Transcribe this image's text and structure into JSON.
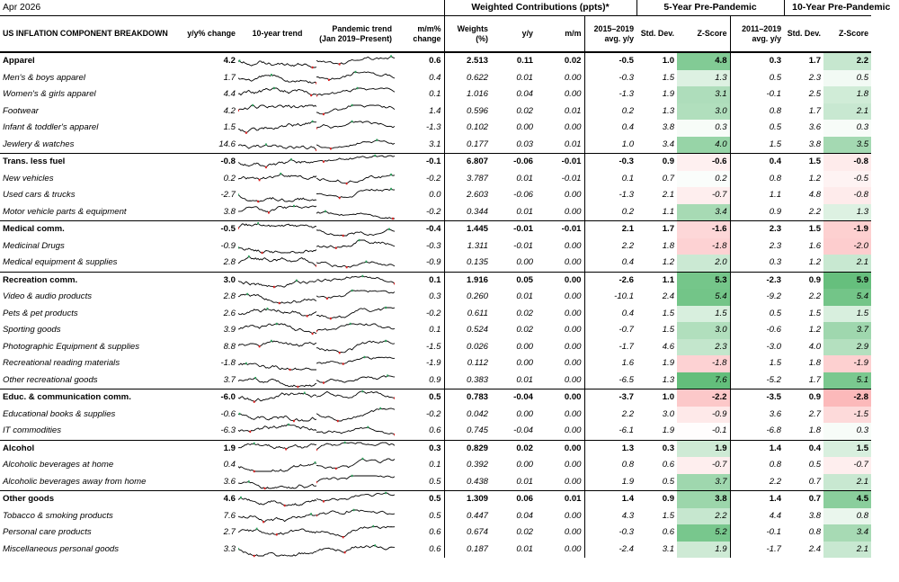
{
  "header": {
    "date": "Apr 2026",
    "weighted_title": "Weighted Contributions (ppts)*",
    "five_year_title": "5-Year Pre-Pandemic",
    "ten_year_title": "10-Year Pre-Pandemic"
  },
  "columns": {
    "breakdown": "US INFLATION COMPONENT BREAKDOWN",
    "yy_change": "y/y% change",
    "trend10": "10-year trend",
    "pandemic_trend": "Pandemic trend (Jan 2019–Present)",
    "mm_change": "m/m% change",
    "weights": "Weights (%)",
    "wc_yy": "y/y",
    "wc_mm": "m/m",
    "avg5": "2015–2019 avg. y/y",
    "std5": "Std. Dev.",
    "z5": "Z-Score",
    "avg10": "2011–2019 avg. y/y",
    "std10": "Std. Dev.",
    "z10": "Z-Score"
  },
  "colors": {
    "green": "#63be7b",
    "red": "#f8696b",
    "peak_marker": "#2ca05a",
    "trough_marker": "#e02020"
  },
  "rows": [
    {
      "name": "Apparel",
      "section": true,
      "yy": "4.2",
      "mm": "0.6",
      "w": "2.513",
      "cy": "0.11",
      "cm": "0.02",
      "a5": "-0.5",
      "s5": "1.0",
      "z5": "4.8",
      "a10": "0.3",
      "s10": "1.7",
      "z10": "2.2"
    },
    {
      "name": "Men's & boys apparel",
      "section": false,
      "yy": "1.7",
      "mm": "0.4",
      "w": "0.622",
      "cy": "0.01",
      "cm": "0.00",
      "a5": "-0.3",
      "s5": "1.5",
      "z5": "1.3",
      "a10": "0.5",
      "s10": "2.3",
      "z10": "0.5"
    },
    {
      "name": "Women's & girls apparel",
      "section": false,
      "yy": "4.4",
      "mm": "0.1",
      "w": "1.016",
      "cy": "0.04",
      "cm": "0.00",
      "a5": "-1.3",
      "s5": "1.9",
      "z5": "3.1",
      "a10": "-0.1",
      "s10": "2.5",
      "z10": "1.8"
    },
    {
      "name": "Footwear",
      "section": false,
      "yy": "4.2",
      "mm": "1.4",
      "w": "0.596",
      "cy": "0.02",
      "cm": "0.01",
      "a5": "0.2",
      "s5": "1.3",
      "z5": "3.0",
      "a10": "0.8",
      "s10": "1.7",
      "z10": "2.1"
    },
    {
      "name": "Infant & toddler's apparel",
      "section": false,
      "yy": "1.5",
      "mm": "-1.3",
      "w": "0.102",
      "cy": "0.00",
      "cm": "0.00",
      "a5": "0.4",
      "s5": "3.8",
      "z5": "0.3",
      "a10": "0.5",
      "s10": "3.6",
      "z10": "0.3"
    },
    {
      "name": "Jewlery & watches",
      "section": false,
      "yy": "14.6",
      "mm": "3.1",
      "w": "0.177",
      "cy": "0.03",
      "cm": "0.01",
      "a5": "1.0",
      "s5": "3.4",
      "z5": "4.0",
      "a10": "1.5",
      "s10": "3.8",
      "z10": "3.5"
    },
    {
      "name": "Trans. less fuel",
      "section": true,
      "yy": "-0.8",
      "mm": "-0.1",
      "w": "6.807",
      "cy": "-0.06",
      "cm": "-0.01",
      "a5": "-0.3",
      "s5": "0.9",
      "z5": "-0.6",
      "a10": "0.4",
      "s10": "1.5",
      "z10": "-0.8"
    },
    {
      "name": "New vehicles",
      "section": false,
      "yy": "0.2",
      "mm": "-0.2",
      "w": "3.787",
      "cy": "0.01",
      "cm": "-0.01",
      "a5": "0.1",
      "s5": "0.7",
      "z5": "0.2",
      "a10": "0.8",
      "s10": "1.2",
      "z10": "-0.5"
    },
    {
      "name": "Used cars & trucks",
      "section": false,
      "yy": "-2.7",
      "mm": "0.0",
      "w": "2.603",
      "cy": "-0.06",
      "cm": "0.00",
      "a5": "-1.3",
      "s5": "2.1",
      "z5": "-0.7",
      "a10": "1.1",
      "s10": "4.8",
      "z10": "-0.8"
    },
    {
      "name": "Motor vehicle parts & equipment",
      "section": false,
      "yy": "3.8",
      "mm": "-0.2",
      "w": "0.344",
      "cy": "0.01",
      "cm": "0.00",
      "a5": "0.2",
      "s5": "1.1",
      "z5": "3.4",
      "a10": "0.9",
      "s10": "2.2",
      "z10": "1.3"
    },
    {
      "name": "Medical comm.",
      "section": true,
      "yy": "-0.5",
      "mm": "-0.4",
      "w": "1.445",
      "cy": "-0.01",
      "cm": "-0.01",
      "a5": "2.1",
      "s5": "1.7",
      "z5": "-1.6",
      "a10": "2.3",
      "s10": "1.5",
      "z10": "-1.9"
    },
    {
      "name": "Medicinal Drugs",
      "section": false,
      "yy": "-0.9",
      "mm": "-0.3",
      "w": "1.311",
      "cy": "-0.01",
      "cm": "0.00",
      "a5": "2.2",
      "s5": "1.8",
      "z5": "-1.8",
      "a10": "2.3",
      "s10": "1.6",
      "z10": "-2.0"
    },
    {
      "name": "Medical equipment & supplies",
      "section": false,
      "yy": "2.8",
      "mm": "-0.9",
      "w": "0.135",
      "cy": "0.00",
      "cm": "0.00",
      "a5": "0.4",
      "s5": "1.2",
      "z5": "2.0",
      "a10": "0.3",
      "s10": "1.2",
      "z10": "2.1"
    },
    {
      "name": "Recreation comm.",
      "section": true,
      "yy": "3.0",
      "mm": "0.1",
      "w": "1.916",
      "cy": "0.05",
      "cm": "0.00",
      "a5": "-2.6",
      "s5": "1.1",
      "z5": "5.3",
      "a10": "-2.3",
      "s10": "0.9",
      "z10": "5.9"
    },
    {
      "name": "Video & audio products",
      "section": false,
      "yy": "2.8",
      "mm": "0.3",
      "w": "0.260",
      "cy": "0.01",
      "cm": "0.00",
      "a5": "-10.1",
      "s5": "2.4",
      "z5": "5.4",
      "a10": "-9.2",
      "s10": "2.2",
      "z10": "5.4"
    },
    {
      "name": "Pets & pet products",
      "section": false,
      "yy": "2.6",
      "mm": "-0.2",
      "w": "0.611",
      "cy": "0.02",
      "cm": "0.00",
      "a5": "0.4",
      "s5": "1.5",
      "z5": "1.5",
      "a10": "0.5",
      "s10": "1.5",
      "z10": "1.5"
    },
    {
      "name": "Sporting goods",
      "section": false,
      "yy": "3.9",
      "mm": "0.1",
      "w": "0.524",
      "cy": "0.02",
      "cm": "0.00",
      "a5": "-0.7",
      "s5": "1.5",
      "z5": "3.0",
      "a10": "-0.6",
      "s10": "1.2",
      "z10": "3.7"
    },
    {
      "name": "Photographic Equipment & supplies",
      "section": false,
      "yy": "8.8",
      "mm": "-1.5",
      "w": "0.026",
      "cy": "0.00",
      "cm": "0.00",
      "a5": "-1.7",
      "s5": "4.6",
      "z5": "2.3",
      "a10": "-3.0",
      "s10": "4.0",
      "z10": "2.9"
    },
    {
      "name": "Recreational reading materials",
      "section": false,
      "yy": "-1.8",
      "mm": "-1.9",
      "w": "0.112",
      "cy": "0.00",
      "cm": "0.00",
      "a5": "1.6",
      "s5": "1.9",
      "z5": "-1.8",
      "a10": "1.5",
      "s10": "1.8",
      "z10": "-1.9"
    },
    {
      "name": "Other recreational goods",
      "section": false,
      "yy": "3.7",
      "mm": "0.9",
      "w": "0.383",
      "cy": "0.01",
      "cm": "0.00",
      "a5": "-6.5",
      "s5": "1.3",
      "z5": "7.6",
      "a10": "-5.2",
      "s10": "1.7",
      "z10": "5.1"
    },
    {
      "name": "Educ. & communication comm.",
      "section": true,
      "yy": "-6.0",
      "mm": "0.5",
      "w": "0.783",
      "cy": "-0.04",
      "cm": "0.00",
      "a5": "-3.7",
      "s5": "1.0",
      "z5": "-2.2",
      "a10": "-3.5",
      "s10": "0.9",
      "z10": "-2.8"
    },
    {
      "name": "Educational books & supplies",
      "section": false,
      "yy": "-0.6",
      "mm": "-0.2",
      "w": "0.042",
      "cy": "0.00",
      "cm": "0.00",
      "a5": "2.2",
      "s5": "3.0",
      "z5": "-0.9",
      "a10": "3.6",
      "s10": "2.7",
      "z10": "-1.5"
    },
    {
      "name": "IT commodities",
      "section": false,
      "yy": "-6.3",
      "mm": "0.6",
      "w": "0.745",
      "cy": "-0.04",
      "cm": "0.00",
      "a5": "-6.1",
      "s5": "1.9",
      "z5": "-0.1",
      "a10": "-6.8",
      "s10": "1.8",
      "z10": "0.3"
    },
    {
      "name": "Alcohol",
      "section": true,
      "yy": "1.9",
      "mm": "0.3",
      "w": "0.829",
      "cy": "0.02",
      "cm": "0.00",
      "a5": "1.3",
      "s5": "0.3",
      "z5": "1.9",
      "a10": "1.4",
      "s10": "0.4",
      "z10": "1.5"
    },
    {
      "name": "Alcoholic beverages at home",
      "section": false,
      "yy": "0.4",
      "mm": "0.1",
      "w": "0.392",
      "cy": "0.00",
      "cm": "0.00",
      "a5": "0.8",
      "s5": "0.6",
      "z5": "-0.7",
      "a10": "0.8",
      "s10": "0.5",
      "z10": "-0.7"
    },
    {
      "name": "Alcoholic beverages away from home",
      "section": false,
      "yy": "3.6",
      "mm": "0.5",
      "w": "0.438",
      "cy": "0.01",
      "cm": "0.00",
      "a5": "1.9",
      "s5": "0.5",
      "z5": "3.7",
      "a10": "2.2",
      "s10": "0.7",
      "z10": "2.1"
    },
    {
      "name": "Other goods",
      "section": true,
      "yy": "4.6",
      "mm": "0.5",
      "w": "1.309",
      "cy": "0.06",
      "cm": "0.01",
      "a5": "1.4",
      "s5": "0.9",
      "z5": "3.8",
      "a10": "1.4",
      "s10": "0.7",
      "z10": "4.5"
    },
    {
      "name": "Tobacco & smoking products",
      "section": false,
      "yy": "7.6",
      "mm": "0.5",
      "w": "0.447",
      "cy": "0.04",
      "cm": "0.00",
      "a5": "4.3",
      "s5": "1.5",
      "z5": "2.2",
      "a10": "4.4",
      "s10": "3.8",
      "z10": "0.8"
    },
    {
      "name": "Personal care products",
      "section": false,
      "yy": "2.7",
      "mm": "0.6",
      "w": "0.674",
      "cy": "0.02",
      "cm": "0.00",
      "a5": "-0.3",
      "s5": "0.6",
      "z5": "5.2",
      "a10": "-0.1",
      "s10": "0.8",
      "z10": "3.4"
    },
    {
      "name": "Miscellaneous personal goods",
      "section": false,
      "yy": "3.3",
      "mm": "0.6",
      "w": "0.187",
      "cy": "0.01",
      "cm": "0.00",
      "a5": "-2.4",
      "s5": "3.1",
      "z5": "1.9",
      "a10": "-1.7",
      "s10": "2.4",
      "z10": "2.1"
    }
  ]
}
